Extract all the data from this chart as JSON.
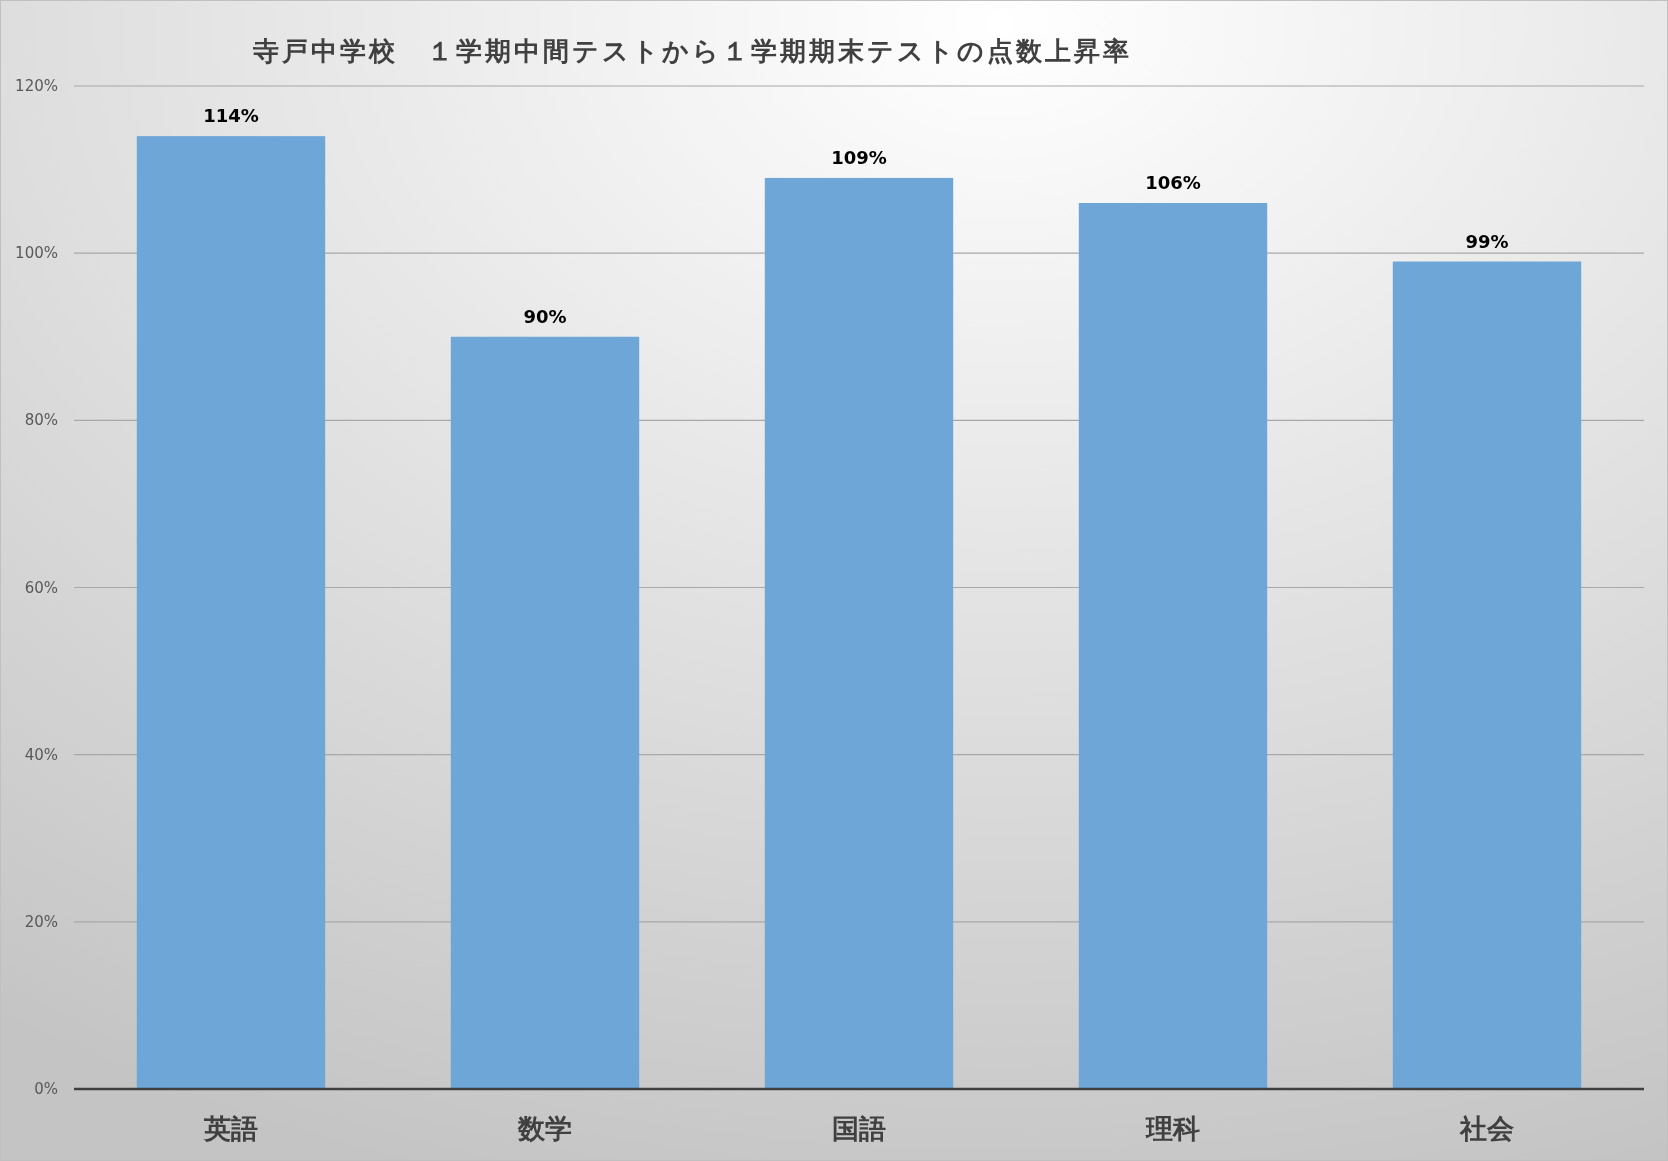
{
  "chart_data": {
    "type": "bar",
    "title": "寺戸中学校　１学期中間テストから１学期期末テストの点数上昇率",
    "categories": [
      "英語",
      "数学",
      "国語",
      "理科",
      "社会"
    ],
    "values": [
      114,
      90,
      109,
      106,
      99
    ],
    "color": "#6fa6d8",
    "value_labels": [
      "114%",
      "90%",
      "109%",
      "106%",
      "99%"
    ],
    "ylim": [
      0,
      120
    ],
    "yticks": [
      {
        "value": 0,
        "label": "0%"
      },
      {
        "value": 20,
        "label": "20%"
      },
      {
        "value": 40,
        "label": "40%"
      },
      {
        "value": 60,
        "label": "60%"
      },
      {
        "value": 80,
        "label": "80%"
      },
      {
        "value": 100,
        "label": "100%"
      },
      {
        "value": 120,
        "label": "120%"
      }
    ],
    "grid": "y"
  }
}
